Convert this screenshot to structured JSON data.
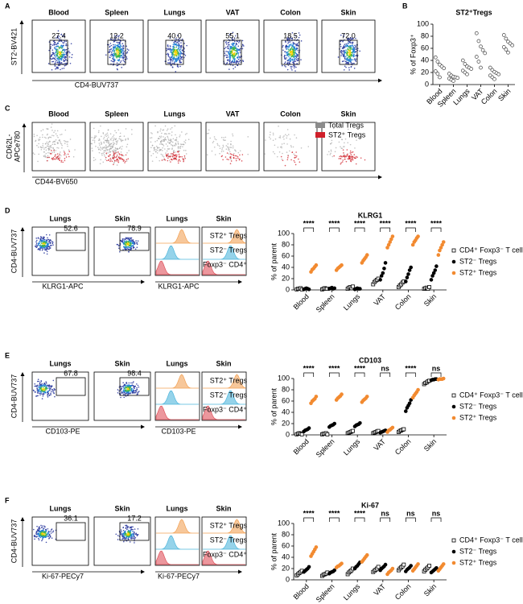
{
  "panel_letters": [
    "A",
    "B",
    "C",
    "D",
    "E",
    "F"
  ],
  "flow_a": {
    "titles": [
      "Blood",
      "Spleen",
      "Lungs",
      "VAT",
      "Colon",
      "Skin"
    ],
    "gates": [
      "27.4",
      "12.2",
      "40.0",
      "55.1",
      "18.5",
      "72.0"
    ],
    "y_label": "ST2-BV421",
    "x_label": "CD4-BUV737"
  },
  "flow_c": {
    "titles": [
      "Blood",
      "Spleen",
      "Lungs",
      "VAT",
      "Colon",
      "Skin"
    ],
    "y_label": [
      "CD62L-",
      "APCe780"
    ],
    "x_label": "CD44-BV650",
    "legend": [
      "Total Tregs",
      "ST2⁺ Tregs"
    ]
  },
  "rows": [
    {
      "flow_titles": [
        "Lungs",
        "Skin"
      ],
      "gates": [
        "52.6",
        "78.9"
      ],
      "hist_titles": [
        "Lungs",
        "Skin"
      ],
      "y_label": "CD4-BUV737",
      "x_label": "KLRG1-APC",
      "hist_x_label": "KLRG1-APC",
      "hist_labels": [
        "ST2⁺ Tregs",
        "ST2⁻ Tregs",
        "Foxp3⁻ CD4⁺"
      ]
    },
    {
      "flow_titles": [
        "Lungs",
        "Skin"
      ],
      "gates": [
        "67.8",
        "98.4"
      ],
      "hist_titles": [
        "Lungs",
        "Skin"
      ],
      "y_label": "CD4-BUV737",
      "x_label": "CD103-PE",
      "hist_x_label": "CD103-PE",
      "hist_labels": [
        "ST2⁺ Tregs",
        "ST2⁻ Tregs",
        "Foxp3⁻ CD4⁺"
      ]
    },
    {
      "flow_titles": [
        "Lungs",
        "Skin"
      ],
      "gates": [
        "36.1",
        "17.2"
      ],
      "hist_titles": [
        "Lungs",
        "Skin"
      ],
      "y_label": "CD4-BUV737",
      "x_label": "Ki-67-PECy7",
      "hist_x_label": "Ki-67-PECy7",
      "hist_labels": [
        "ST2⁺ Tregs",
        "ST2⁻ Tregs",
        "Foxp3⁻ CD4⁺"
      ]
    }
  ],
  "chart_data": [
    {
      "type": "dot",
      "title": "ST2⁺Tregs",
      "y_label": "% of Foxp3⁺",
      "categories": [
        "Blood",
        "Spleen",
        "Lungs",
        "VAT",
        "Colon",
        "Skin"
      ],
      "ylim": [
        0,
        100
      ],
      "yticks": [
        0,
        20,
        40,
        60,
        80,
        100
      ],
      "series": [
        {
          "color": "#444444",
          "marker": "circle-open",
          "values": [
            [
              45,
              38,
              33,
              30,
              27,
              22,
              18,
              12
            ],
            [
              18,
              15,
              13,
              12,
              11,
              10,
              8,
              6
            ],
            [
              40,
              34,
              30,
              28,
              26,
              23,
              20,
              17
            ],
            [
              85,
              72,
              63,
              57,
              52,
              46,
              38,
              28
            ],
            [
              28,
              24,
              21,
              19,
              17,
              15,
              12,
              9
            ],
            [
              82,
              76,
              71,
              68,
              65,
              62,
              58,
              53
            ]
          ]
        }
      ]
    },
    {
      "type": "dot",
      "title": "KLRG1",
      "y_label": "% of parent",
      "categories": [
        "Blood",
        "Spleen",
        "Lungs",
        "VAT",
        "Colon",
        "Skin"
      ],
      "ylim": [
        0,
        100
      ],
      "yticks": [
        0,
        20,
        40,
        60,
        80,
        100
      ],
      "significance": [
        "****",
        "****",
        "****",
        "****",
        "****",
        "****"
      ],
      "series": [
        {
          "name": "CD4⁺ Foxp3⁻ T cells",
          "color": "#000000",
          "marker": "square-open",
          "values": [
            [
              1,
              2,
              2,
              3,
              1
            ],
            [
              1,
              2,
              3,
              2,
              2
            ],
            [
              2,
              4,
              5,
              3,
              6
            ],
            [
              10,
              14,
              16,
              18,
              20
            ],
            [
              5,
              8,
              10,
              13,
              15
            ],
            [
              2,
              3,
              4,
              2,
              5
            ]
          ]
        },
        {
          "name": "ST2⁻ Tregs",
          "color": "#000000",
          "marker": "circle",
          "values": [
            [
              1,
              2,
              3,
              2,
              1
            ],
            [
              2,
              3,
              4,
              2,
              3
            ],
            [
              1,
              2,
              3,
              2,
              2
            ],
            [
              18,
              25,
              30,
              38,
              48
            ],
            [
              15,
              22,
              28,
              35,
              40
            ],
            [
              18,
              25,
              30,
              35,
              42
            ]
          ]
        },
        {
          "name": "ST2⁺ Tregs",
          "color": "#f28a30",
          "marker": "circle",
          "values": [
            [
              32,
              36,
              38,
              41,
              44
            ],
            [
              35,
              38,
              40,
              42,
              44
            ],
            [
              48,
              52,
              55,
              58,
              62
            ],
            [
              75,
              80,
              85,
              90,
              95
            ],
            [
              80,
              85,
              88,
              92,
              95
            ],
            [
              62,
              70,
              75,
              80,
              85
            ]
          ]
        }
      ]
    },
    {
      "type": "dot",
      "title": "CD103",
      "y_label": "% of parent",
      "categories": [
        "Blood",
        "Spleen",
        "Lungs",
        "VAT",
        "Colon",
        "Skin"
      ],
      "ylim": [
        0,
        100
      ],
      "yticks": [
        0,
        20,
        40,
        60,
        80,
        100
      ],
      "significance": [
        "****",
        "****",
        "****",
        "ns",
        "****",
        "ns"
      ],
      "series": [
        {
          "name": "CD4⁺ Foxp3⁻ T cells",
          "color": "#000000",
          "marker": "square-open",
          "values": [
            [
              1,
              2,
              3,
              2,
              1
            ],
            [
              1,
              2,
              2,
              3,
              1
            ],
            [
              3,
              4,
              5,
              6,
              7
            ],
            [
              3,
              4,
              5,
              6,
              7
            ],
            [
              5,
              7,
              8,
              9,
              10
            ],
            [
              90,
              92,
              93,
              95,
              96
            ]
          ]
        },
        {
          "name": "ST2⁻ Tregs",
          "color": "#000000",
          "marker": "circle",
          "values": [
            [
              6,
              8,
              9,
              10,
              12
            ],
            [
              14,
              16,
              17,
              18,
              20
            ],
            [
              15,
              17,
              18,
              19,
              21
            ],
            [
              4,
              5,
              6,
              7,
              8
            ],
            [
              42,
              48,
              52,
              56,
              62
            ],
            [
              97,
              98,
              98,
              99,
              99
            ]
          ]
        },
        {
          "name": "ST2⁺ Tregs",
          "color": "#f28a30",
          "marker": "circle",
          "values": [
            [
              56,
              60,
              62,
              64,
              68
            ],
            [
              62,
              65,
              67,
              69,
              72
            ],
            [
              58,
              61,
              63,
              65,
              68
            ],
            [
              5,
              8,
              9,
              11,
              13
            ],
            [
              66,
              70,
              73,
              76,
              80
            ],
            [
              98,
              99,
              99,
              99,
              100
            ]
          ]
        }
      ]
    },
    {
      "type": "dot",
      "title": "Ki-67",
      "y_label": "% of parent",
      "categories": [
        "Blood",
        "Spleen",
        "Lungs",
        "VAT",
        "Colon",
        "Skin"
      ],
      "ylim": [
        0,
        100
      ],
      "yticks": [
        0,
        20,
        40,
        60,
        80,
        100
      ],
      "significance": [
        "****",
        "****",
        "****",
        "ns",
        "ns",
        "ns"
      ],
      "series": [
        {
          "name": "CD4⁺ Foxp3⁻ T cells",
          "color": "#000000",
          "marker": "square-open",
          "values": [
            [
              8,
              10,
              12,
              14,
              16
            ],
            [
              7,
              9,
              10,
              11,
              13
            ],
            [
              10,
              13,
              15,
              17,
              20
            ],
            [
              14,
              16,
              18,
              20,
              23
            ],
            [
              17,
              20,
              22,
              24,
              27
            ],
            [
              15,
              18,
              20,
              22,
              25
            ]
          ]
        },
        {
          "name": "ST2⁻ Tregs",
          "color": "#000000",
          "marker": "circle",
          "values": [
            [
              14,
              16,
              18,
              20,
              23
            ],
            [
              11,
              13,
              14,
              15,
              17
            ],
            [
              20,
              23,
              25,
              28,
              31
            ],
            [
              17,
              20,
              22,
              24,
              27
            ],
            [
              15,
              18,
              20,
              22,
              25
            ],
            [
              13,
              15,
              17,
              19,
              21
            ]
          ]
        },
        {
          "name": "ST2⁺ Tregs",
          "color": "#f28a30",
          "marker": "circle",
          "values": [
            [
              42,
              46,
              50,
              54,
              58
            ],
            [
              22,
              24,
              25,
              27,
              29
            ],
            [
              32,
              35,
              38,
              41,
              44
            ],
            [
              10,
              13,
              15,
              17,
              20
            ],
            [
              16,
              19,
              22,
              25,
              28
            ],
            [
              16,
              19,
              22,
              25,
              28
            ]
          ]
        }
      ]
    }
  ]
}
